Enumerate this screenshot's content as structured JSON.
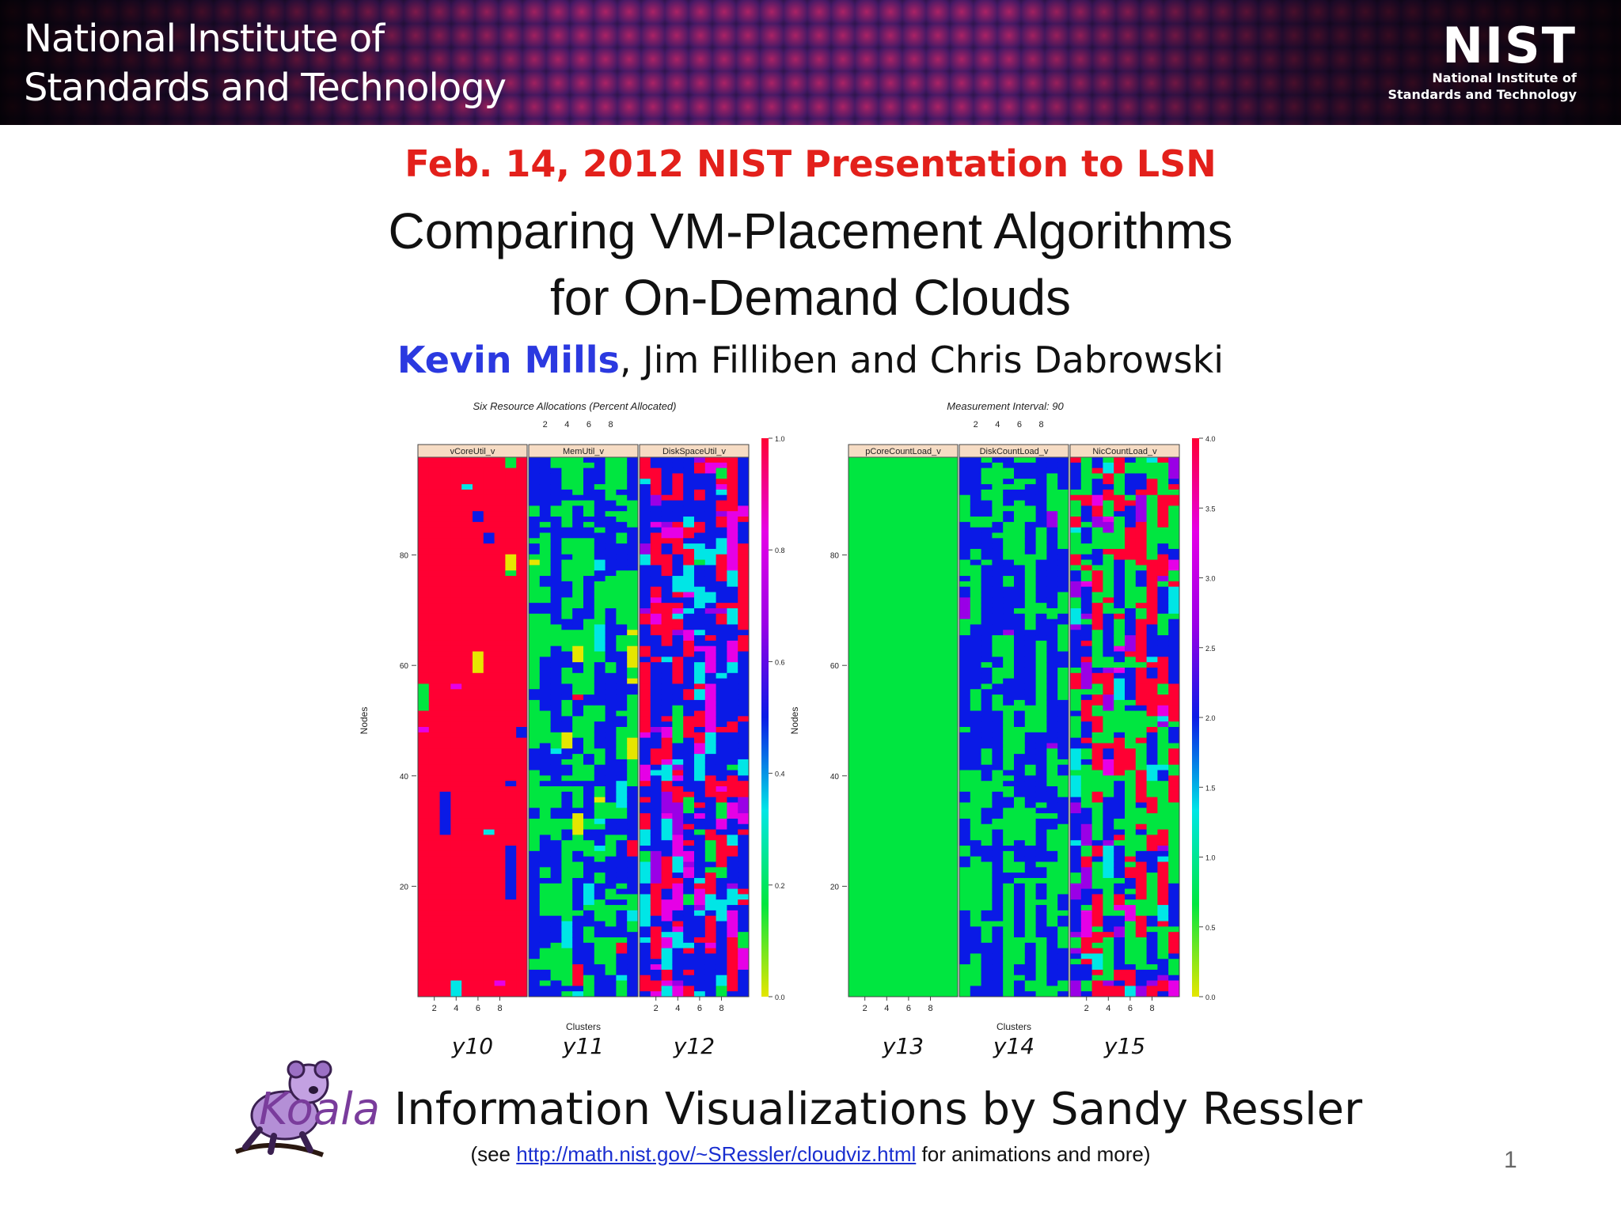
{
  "banner": {
    "org_name": "National Institute of\nStandards and Technology",
    "logo_mark": "NIST",
    "logo_sub": "National Institute of\nStandards and Technology"
  },
  "slide": {
    "date_line": "Feb. 14, 2012  NIST Presentation to LSN",
    "title": "Comparing VM-Placement Algorithms\nfor On-Demand Clouds",
    "author_lead": "Kevin Mills",
    "author_rest": ", Jim Filliben and  Chris Dabrowski",
    "credit_koala": "Koala",
    "credit_rest": " Information Visualizations by Sandy Ressler",
    "note_pre": "(see ",
    "note_link": "http://math.nist.gov/~SRessler/cloudviz.html",
    "note_post": "  for animations and more)",
    "page_number": "1",
    "koala_icon": "koala-icon"
  },
  "chart_data": [
    {
      "type": "heatmap",
      "title": "Six Resource Allocations (Percent Allocated)",
      "xlabel": "Clusters",
      "ylabel": "Nodes",
      "panels": [
        "vCoreUtil_v",
        "MemUtil_v",
        "DiskSpaceUtil_v"
      ],
      "panel_captions": [
        "y10",
        "y11",
        "y12"
      ],
      "x_ticks": [
        2,
        4,
        6,
        8
      ],
      "y_ticks": [
        20,
        40,
        60,
        80
      ],
      "ylim": [
        0,
        100
      ],
      "colorbar_range": [
        0.0,
        1.0
      ],
      "colorbar_ticks": [
        "0.0",
        "0.2",
        "0.4",
        "0.6",
        "0.8",
        "1.0"
      ],
      "colors": [
        "#e6e600",
        "#00e640",
        "#00e6e6",
        "#0a1ae6",
        "#9a00e6",
        "#e600e6",
        "#ff0033"
      ]
    },
    {
      "type": "heatmap",
      "title": "Measurement Interval:  90",
      "xlabel": "Clusters",
      "ylabel": "Nodes",
      "panels": [
        "pCoreCountLoad_v",
        "DiskCountLoad_v",
        "NicCountLoad_v"
      ],
      "panel_captions": [
        "y13",
        "y14",
        "y15"
      ],
      "x_ticks": [
        2,
        4,
        6,
        8
      ],
      "y_ticks": [
        20,
        40,
        60,
        80
      ],
      "ylim": [
        0,
        100
      ],
      "colorbar_range": [
        0.0,
        4.0
      ],
      "colorbar_ticks": [
        "0.0",
        "0.5",
        "1.0",
        "1.5",
        "2.0",
        "2.5",
        "3.0",
        "3.5",
        "4.0"
      ],
      "colors": [
        "#e6e600",
        "#00e640",
        "#00e6e6",
        "#0a1ae6",
        "#9a00e6",
        "#e600e6",
        "#ff0033"
      ]
    }
  ]
}
